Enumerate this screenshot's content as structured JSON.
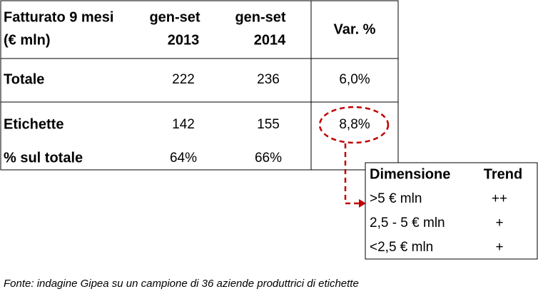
{
  "main_table": {
    "header": [
      [
        "Fatturato 9 mesi",
        "(€ mln)"
      ],
      [
        "gen-set",
        "2013"
      ],
      [
        "gen-set",
        "2014"
      ],
      [
        "Var. %"
      ]
    ],
    "rows": [
      [
        "Totale",
        "222",
        "236",
        "6,0%"
      ],
      [
        "Etichette",
        "142",
        "155",
        "8,8%"
      ],
      [
        "% sul totale",
        "64%",
        "66%"
      ]
    ]
  },
  "side_table": {
    "header": [
      "Dimensione",
      "Trend"
    ],
    "rows": [
      [
        ">5 € mln",
        "++"
      ],
      [
        "2,5 - 5 € mln",
        "+"
      ],
      [
        "<2,5 € mln",
        "+"
      ]
    ]
  },
  "footnote": "Fonte: indagine Gipea su un campione di 36 aziende produttrici di etichette"
}
